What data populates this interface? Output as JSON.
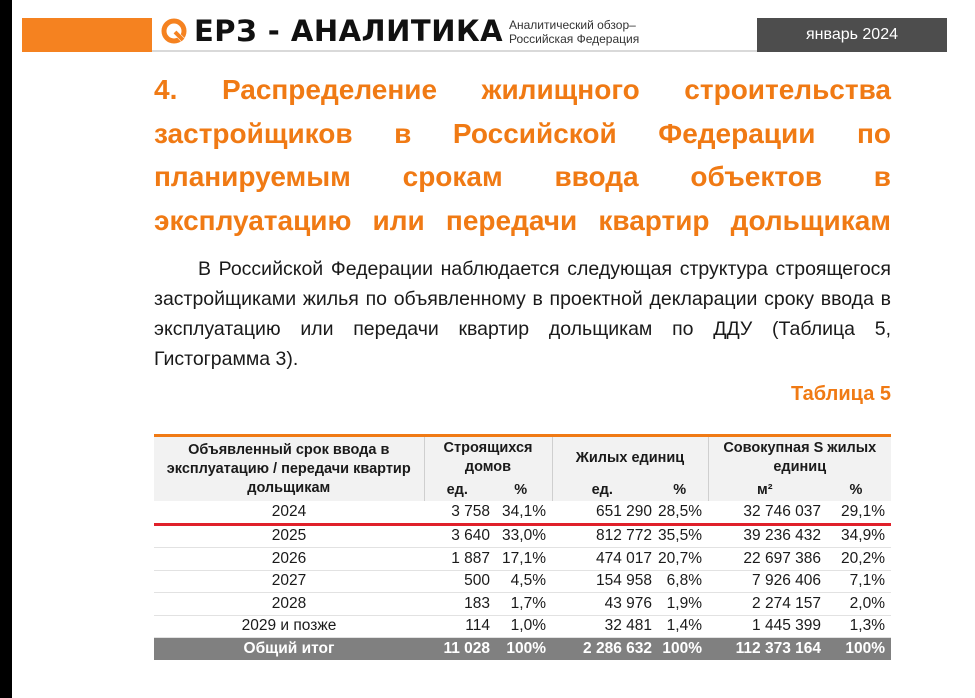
{
  "header": {
    "logo_text": "ЕРЗ - АНАЛИТИКА",
    "subtitle_line1": "Аналитический обзор–",
    "subtitle_line2": "Российская Федерация",
    "date": "январь 2024",
    "accent_color": "#f58220"
  },
  "section": {
    "title": "4. Распределение жилищного строительства застройщиков в Российской Федерации по планируемым срокам ввода объектов в эксплуатацию или передачи квартир дольщикам",
    "paragraph": "В Российской Федерации наблюдается следующая структура строящегося застройщиками жилья по объявленному в проектной декларации сроку ввода в эксплуатацию или передачи квартир дольщикам по ДДУ (Таблица 5, Гистограмма 3).",
    "table_label": "Таблица 5"
  },
  "table": {
    "col_period": "Объявленный срок ввода в эксплуатацию / передачи квартир дольщикам",
    "col_houses": "Строящихся домов",
    "col_units": "Жилых единиц",
    "col_area": "Совокупная S жилых единиц",
    "sub_ed1": "ед.",
    "sub_pct1": "%",
    "sub_ed2": "ед.",
    "sub_pct2": "%",
    "sub_m2": "м²",
    "sub_pct3": "%",
    "rows": [
      {
        "year": "2024",
        "houses": "3 758",
        "houses_pct": "34,1%",
        "units": "651 290",
        "units_pct": "28,5%",
        "area": "32 746 037",
        "area_pct": "29,1%"
      },
      {
        "year": "2025",
        "houses": "3 640",
        "houses_pct": "33,0%",
        "units": "812 772",
        "units_pct": "35,5%",
        "area": "39 236 432",
        "area_pct": "34,9%"
      },
      {
        "year": "2026",
        "houses": "1 887",
        "houses_pct": "17,1%",
        "units": "474 017",
        "units_pct": "20,7%",
        "area": "22 697 386",
        "area_pct": "20,2%"
      },
      {
        "year": "2027",
        "houses": "500",
        "houses_pct": "4,5%",
        "units": "154 958",
        "units_pct": "6,8%",
        "area": "7 926 406",
        "area_pct": "7,1%"
      },
      {
        "year": "2028",
        "houses": "183",
        "houses_pct": "1,7%",
        "units": "43 976",
        "units_pct": "1,9%",
        "area": "2 274 157",
        "area_pct": "2,0%"
      },
      {
        "year": "2029 и позже",
        "houses": "114",
        "houses_pct": "1,0%",
        "units": "32 481",
        "units_pct": "1,4%",
        "area": "1 445 399",
        "area_pct": "1,3%"
      }
    ],
    "total": {
      "label": "Общий итог",
      "houses": "11 028",
      "houses_pct": "100%",
      "units": "2 286 632",
      "units_pct": "100%",
      "area": "112 373 164",
      "area_pct": "100%"
    }
  }
}
